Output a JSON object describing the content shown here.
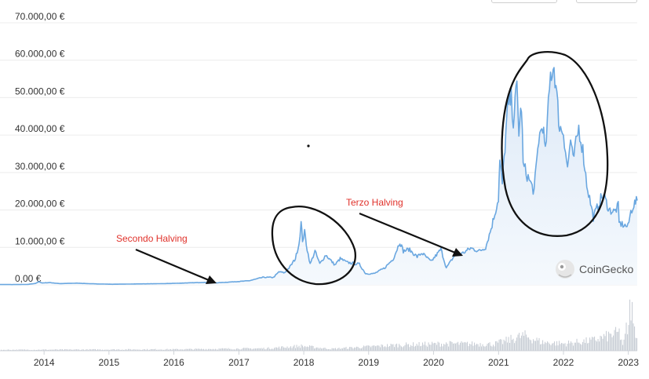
{
  "chart_data": {
    "type": "area",
    "currency": "€",
    "y_ticks": [
      "0,00 €",
      "10.000,00 €",
      "20.000,00 €",
      "30.000,00 €",
      "40.000,00 €",
      "50.000,00 €",
      "60.000,00 €",
      "70.000,00 €"
    ],
    "y_tick_values": [
      0,
      10000,
      20000,
      30000,
      40000,
      50000,
      60000,
      70000
    ],
    "ylim": [
      0,
      70000
    ],
    "x_ticks": [
      "2014",
      "2015",
      "2016",
      "2017",
      "2018",
      "2019",
      "2020",
      "2021",
      "2022",
      "2023"
    ],
    "xlim": [
      "2013-04-28",
      "2023-02-20"
    ],
    "grid": true,
    "series": [
      {
        "values_eur": [
          [
            "2013-04-28",
            100
          ],
          [
            "2013-07-01",
            70
          ],
          [
            "2013-10-01",
            110
          ],
          [
            "2013-11-15",
            400
          ],
          [
            "2013-12-04",
            850
          ],
          [
            "2013-12-20",
            500
          ],
          [
            "2014-02-01",
            600
          ],
          [
            "2014-04-01",
            330
          ],
          [
            "2014-07-01",
            450
          ],
          [
            "2014-10-01",
            280
          ],
          [
            "2015-01-15",
            160
          ],
          [
            "2015-07-01",
            250
          ],
          [
            "2015-11-01",
            320
          ],
          [
            "2016-01-01",
            400
          ],
          [
            "2016-06-15",
            650
          ],
          [
            "2016-09-01",
            550
          ],
          [
            "2017-01-01",
            900
          ],
          [
            "2017-03-01",
            1100
          ],
          [
            "2017-05-15",
            2000
          ],
          [
            "2017-07-15",
            2000
          ],
          [
            "2017-08-15",
            3500
          ],
          [
            "2017-09-15",
            3200
          ],
          [
            "2017-10-15",
            4800
          ],
          [
            "2017-11-15",
            7000
          ],
          [
            "2017-12-05",
            11000
          ],
          [
            "2017-12-17",
            16500
          ],
          [
            "2017-12-25",
            12000
          ],
          [
            "2018-01-06",
            14000
          ],
          [
            "2018-01-20",
            9500
          ],
          [
            "2018-02-06",
            5500
          ],
          [
            "2018-03-05",
            9000
          ],
          [
            "2018-04-01",
            5600
          ],
          [
            "2018-05-05",
            8000
          ],
          [
            "2018-06-25",
            5300
          ],
          [
            "2018-07-25",
            7000
          ],
          [
            "2018-09-01",
            6000
          ],
          [
            "2018-11-10",
            5500
          ],
          [
            "2018-12-15",
            3000
          ],
          [
            "2019-02-01",
            3000
          ],
          [
            "2019-04-01",
            4500
          ],
          [
            "2019-05-20",
            7000
          ],
          [
            "2019-06-26",
            11500
          ],
          [
            "2019-07-15",
            9000
          ],
          [
            "2019-08-15",
            9500
          ],
          [
            "2019-10-01",
            7500
          ],
          [
            "2019-10-28",
            8500
          ],
          [
            "2019-12-18",
            6200
          ],
          [
            "2020-02-12",
            9500
          ],
          [
            "2020-03-13",
            4500
          ],
          [
            "2020-05-01",
            8000
          ],
          [
            "2020-06-15",
            8500
          ],
          [
            "2020-07-28",
            9800
          ],
          [
            "2020-09-15",
            9000
          ],
          [
            "2020-10-20",
            10000
          ],
          [
            "2020-11-20",
            15000
          ],
          [
            "2020-12-31",
            23000
          ],
          [
            "2021-01-08",
            33000
          ],
          [
            "2021-01-22",
            27000
          ],
          [
            "2021-02-21",
            47000
          ],
          [
            "2021-03-13",
            50000
          ],
          [
            "2021-03-25",
            44000
          ],
          [
            "2021-04-14",
            53000
          ],
          [
            "2021-04-25",
            41000
          ],
          [
            "2021-05-10",
            48000
          ],
          [
            "2021-05-19",
            32000
          ],
          [
            "2021-06-22",
            28000
          ],
          [
            "2021-07-20",
            25000
          ],
          [
            "2021-08-15",
            39000
          ],
          [
            "2021-09-07",
            43000
          ],
          [
            "2021-09-21",
            35000
          ],
          [
            "2021-10-20",
            56000
          ],
          [
            "2021-11-09",
            58500
          ],
          [
            "2021-11-25",
            50000
          ],
          [
            "2021-12-10",
            42000
          ],
          [
            "2022-01-01",
            41000
          ],
          [
            "2022-01-24",
            31000
          ],
          [
            "2022-02-10",
            39000
          ],
          [
            "2022-02-24",
            33000
          ],
          [
            "2022-03-28",
            42000
          ],
          [
            "2022-04-20",
            36000
          ],
          [
            "2022-05-12",
            27000
          ],
          [
            "2022-06-18",
            18000
          ],
          [
            "2022-07-30",
            23000
          ],
          [
            "2022-08-15",
            24000
          ],
          [
            "2022-09-15",
            20000
          ],
          [
            "2022-10-15",
            19500
          ],
          [
            "2022-11-05",
            21000
          ],
          [
            "2022-11-10",
            16500
          ],
          [
            "2022-12-30",
            15500
          ],
          [
            "2023-01-15",
            19500
          ],
          [
            "2023-02-01",
            21500
          ],
          [
            "2023-02-20",
            22500
          ]
        ]
      }
    ],
    "volume": [
      [
        "2013-04-28",
        0.02
      ],
      [
        "2016-01-01",
        0.03
      ],
      [
        "2017-06-01",
        0.05
      ],
      [
        "2017-12-15",
        0.1
      ],
      [
        "2018-06-01",
        0.04
      ],
      [
        "2019-06-01",
        0.12
      ],
      [
        "2020-03-15",
        0.15
      ],
      [
        "2020-12-01",
        0.14
      ],
      [
        "2021-02-01",
        0.2
      ],
      [
        "2021-05-19",
        0.32
      ],
      [
        "2021-09-01",
        0.18
      ],
      [
        "2022-01-01",
        0.15
      ],
      [
        "2022-06-15",
        0.22
      ],
      [
        "2022-11-09",
        0.38
      ],
      [
        "2022-12-01",
        0.1
      ],
      [
        "2023-01-14",
        1.0
      ],
      [
        "2023-02-20",
        0.3
      ]
    ]
  },
  "annotations": {
    "second_halving": "Secondo Halving",
    "third_halving": "Terzo Halving"
  },
  "watermark": {
    "brand": "CoinGecko",
    "icon": "gecko-logo-icon"
  },
  "colors": {
    "line": "#6aa7e0",
    "fill_top": "#dde9f7",
    "fill_bottom": "#f5f9fd",
    "grid": "#ececec",
    "volume": "#c9ced6",
    "annotation_text": "#e0322b",
    "annotation_stroke": "#111111"
  }
}
